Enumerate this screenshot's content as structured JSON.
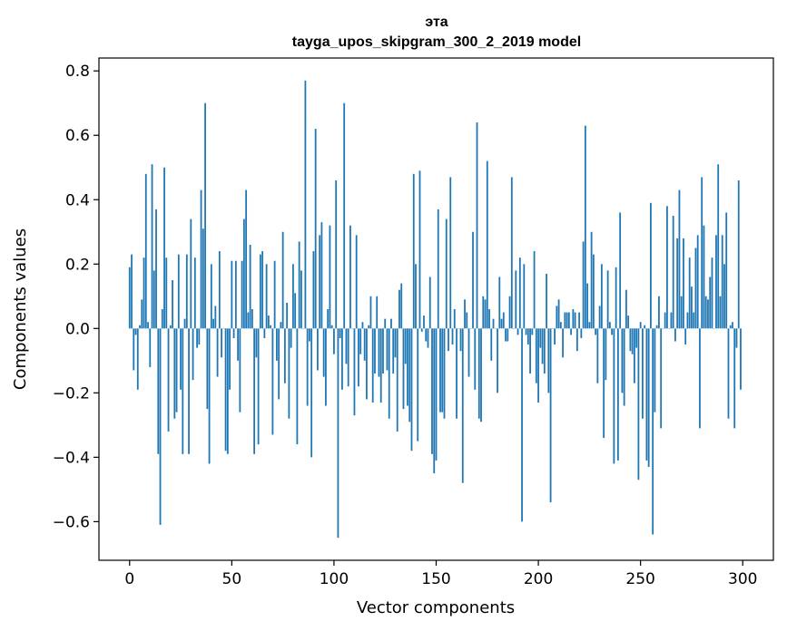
{
  "chart_data": {
    "type": "bar",
    "title": "эта",
    "subtitle": "tayga_upos_skipgram_300_2_2019 model",
    "xlabel": "Vector components",
    "ylabel": "Components values",
    "xlim": [
      -15,
      315
    ],
    "ylim": [
      -0.72,
      0.84
    ],
    "xticks": [
      0,
      50,
      100,
      150,
      200,
      250,
      300
    ],
    "yticks": [
      -0.6,
      -0.4,
      -0.2,
      0.0,
      0.2,
      0.4,
      0.6,
      0.8
    ],
    "xtick_labels": [
      "0",
      "50",
      "100",
      "150",
      "200",
      "250",
      "300"
    ],
    "ytick_labels": [
      "−0.6",
      "−0.4",
      "−0.2",
      "0.0",
      "0.2",
      "0.4",
      "0.6",
      "0.8"
    ],
    "grid": false,
    "bar_color": "#1f77b4",
    "values": [
      0.19,
      0.23,
      -0.13,
      -0.02,
      -0.19,
      0.01,
      0.09,
      0.22,
      0.48,
      0.02,
      -0.12,
      0.51,
      0.18,
      0.37,
      -0.39,
      -0.61,
      0.06,
      0.5,
      0.22,
      -0.32,
      0.01,
      0.15,
      -0.28,
      -0.26,
      0.23,
      -0.19,
      -0.39,
      0.03,
      0.23,
      -0.39,
      0.34,
      -0.16,
      0.22,
      -0.06,
      -0.05,
      0.43,
      0.31,
      0.7,
      -0.25,
      -0.42,
      0.2,
      0.03,
      0.07,
      -0.15,
      0.24,
      -0.09,
      0.0,
      -0.38,
      -0.39,
      -0.19,
      0.21,
      -0.03,
      0.21,
      -0.1,
      -0.26,
      0.21,
      0.34,
      0.43,
      0.05,
      0.26,
      0.06,
      -0.39,
      -0.09,
      -0.36,
      0.23,
      0.24,
      -0.03,
      0.2,
      0.04,
      0.01,
      -0.33,
      0.21,
      -0.1,
      -0.22,
      0.02,
      0.3,
      -0.17,
      0.08,
      -0.28,
      -0.06,
      0.2,
      0.11,
      -0.36,
      0.27,
      0.18,
      0.0,
      0.77,
      -0.24,
      -0.04,
      -0.4,
      0.24,
      0.62,
      -0.13,
      0.29,
      0.33,
      -0.15,
      -0.24,
      0.06,
      0.32,
      0.01,
      -0.08,
      0.46,
      -0.65,
      -0.03,
      -0.19,
      0.7,
      -0.11,
      -0.18,
      0.32,
      0.0,
      -0.27,
      0.29,
      -0.18,
      -0.08,
      0.02,
      -0.1,
      -0.22,
      0.01,
      0.1,
      -0.23,
      -0.14,
      0.1,
      -0.15,
      -0.23,
      -0.14,
      0.03,
      -0.13,
      -0.28,
      0.03,
      -0.14,
      -0.09,
      -0.32,
      0.12,
      0.14,
      -0.25,
      -0.11,
      -0.24,
      -0.29,
      -0.38,
      0.48,
      0.2,
      -0.35,
      0.49,
      -0.01,
      0.04,
      -0.04,
      -0.06,
      0.16,
      -0.39,
      -0.45,
      -0.41,
      0.37,
      -0.26,
      -0.26,
      -0.28,
      0.34,
      -0.07,
      0.47,
      -0.05,
      0.06,
      -0.28,
      0.0,
      -0.07,
      -0.48,
      0.09,
      0.05,
      -0.15,
      0.0,
      0.3,
      -0.19,
      0.64,
      -0.28,
      -0.29,
      0.1,
      0.09,
      0.52,
      0.06,
      -0.1,
      0.03,
      0.0,
      -0.2,
      0.16,
      0.03,
      0.05,
      -0.04,
      -0.04,
      0.1,
      0.47,
      0.0,
      0.18,
      -0.02,
      0.22,
      -0.6,
      0.2,
      -0.02,
      -0.05,
      -0.14,
      -0.02,
      0.24,
      -0.17,
      -0.23,
      -0.06,
      -0.11,
      -0.14,
      0.17,
      -0.2,
      -0.54,
      0.0,
      -0.05,
      0.07,
      0.09,
      0.02,
      -0.09,
      0.05,
      0.05,
      0.05,
      -0.02,
      0.06,
      0.05,
      -0.07,
      0.05,
      -0.03,
      0.27,
      0.63,
      0.14,
      0.02,
      0.3,
      0.23,
      -0.02,
      -0.17,
      0.07,
      0.2,
      -0.34,
      -0.16,
      0.18,
      0.02,
      -0.02,
      -0.42,
      0.19,
      -0.41,
      0.36,
      -0.2,
      -0.24,
      0.12,
      0.04,
      -0.07,
      -0.08,
      -0.17,
      -0.06,
      -0.47,
      0.02,
      -0.28,
      0.01,
      -0.41,
      -0.43,
      0.39,
      -0.64,
      -0.26,
      0.01,
      0.1,
      -0.31,
      0.0,
      0.05,
      0.38,
      0.0,
      0.05,
      0.35,
      -0.04,
      0.28,
      0.43,
      0.1,
      0.28,
      -0.05,
      0.05,
      0.22,
      0.13,
      0.05,
      0.25,
      0.29,
      -0.31,
      0.47,
      0.32,
      0.1,
      0.09,
      0.16,
      0.22,
      0.0,
      0.29,
      0.51,
      0.1,
      0.29,
      0.2,
      0.36,
      -0.28,
      0.01,
      0.02,
      -0.31,
      -0.06,
      0.46,
      -0.19
    ]
  }
}
